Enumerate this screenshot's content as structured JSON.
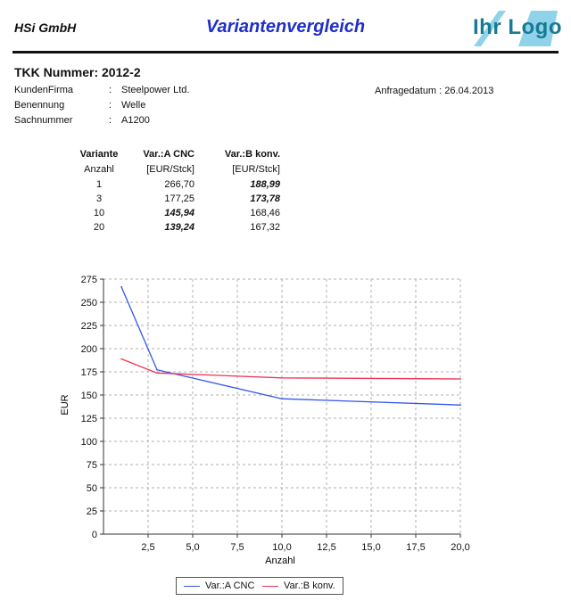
{
  "header": {
    "company": "HSi GmbH",
    "title": "Variantenvergleich",
    "logo_text": "Ihr Logo"
  },
  "info": {
    "tkk_label": "TKK Nummer: 2012-2",
    "rows": [
      {
        "label": "KundenFirma",
        "colon": ":",
        "value": "Steelpower Ltd."
      },
      {
        "label": "Benennung",
        "colon": ":",
        "value": "Welle"
      },
      {
        "label": "Sachnummer",
        "colon": ":",
        "value": "A1200"
      }
    ],
    "anfragedatum": "Anfragedatum : 26.04.2013"
  },
  "table": {
    "headers": [
      "Variante",
      "Var.:A CNC",
      "Var.:B konv."
    ],
    "subheaders": [
      "Anzahl",
      "[EUR/Stck]",
      "[EUR/Stck]"
    ],
    "rows": [
      {
        "anzahl": "1",
        "a": "266,70",
        "b": "188,99",
        "best": "b"
      },
      {
        "anzahl": "3",
        "a": "177,25",
        "b": "173,78",
        "best": "b"
      },
      {
        "anzahl": "10",
        "a": "145,94",
        "b": "168,46",
        "best": "a"
      },
      {
        "anzahl": "20",
        "a": "139,24",
        "b": "167,32",
        "best": "a"
      }
    ]
  },
  "chart_data": {
    "type": "line",
    "xlabel": "Anzahl",
    "ylabel": "EUR",
    "xlim": [
      0,
      20
    ],
    "ylim": [
      0,
      275
    ],
    "xticks": [
      2.5,
      5.0,
      7.5,
      10.0,
      12.5,
      15.0,
      17.5,
      20.0
    ],
    "xtick_labels": [
      "2,5",
      "5,0",
      "7,5",
      "10,0",
      "12,5",
      "15,0",
      "17,5",
      "20,0"
    ],
    "yticks": [
      0,
      25,
      50,
      75,
      100,
      125,
      150,
      175,
      200,
      225,
      250,
      275
    ],
    "grid": true,
    "legend": "bottom",
    "series": [
      {
        "name": "Var.:A CNC",
        "color": "#3355ee",
        "x": [
          1,
          3,
          10,
          20
        ],
        "y": [
          266.7,
          177.25,
          145.94,
          139.24
        ]
      },
      {
        "name": "Var.:B konv.",
        "color": "#ee3355",
        "x": [
          1,
          3,
          10,
          20
        ],
        "y": [
          188.99,
          173.78,
          168.46,
          167.32
        ]
      }
    ]
  }
}
